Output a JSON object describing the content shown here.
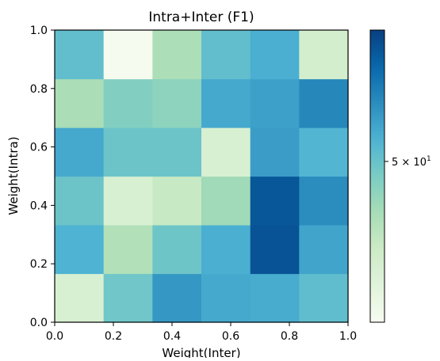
{
  "chart_data": {
    "type": "heatmap",
    "title": "Intra+Inter (F1)",
    "xlabel": "Weight(Inter)",
    "ylabel": "Weight(Intra)",
    "xlim": [
      0.0,
      1.0
    ],
    "ylim": [
      0.0,
      1.0
    ],
    "x_ticks": [
      "0.0",
      "0.2",
      "0.4",
      "0.6",
      "0.8",
      "1.0"
    ],
    "y_ticks": [
      "0.0",
      "0.2",
      "0.4",
      "0.6",
      "0.8",
      "1.0"
    ],
    "grid": false,
    "colormap": "GnBu",
    "colorbar": {
      "scale": "log",
      "vmin": 40,
      "vmax": 60,
      "tick_value": 50,
      "tick_label_base": "5 × 10",
      "tick_label_exp": "1"
    },
    "rows_y": [
      "0.0–0.17",
      "0.17–0.33",
      "0.33–0.5",
      "0.5–0.67",
      "0.67–0.83",
      "0.83–1.0"
    ],
    "cols_x": [
      "0.0–0.17",
      "0.17–0.33",
      "0.33–0.5",
      "0.5–0.67",
      "0.67–0.83",
      "0.83–1.0"
    ],
    "values": [
      [
        43.0,
        49.6,
        53.4,
        52.2,
        52.0,
        50.5
      ],
      [
        51.5,
        46.0,
        49.7,
        51.8,
        58.6,
        52.5
      ],
      [
        49.8,
        43.0,
        44.6,
        47.0,
        58.3,
        54.2
      ],
      [
        52.2,
        49.8,
        49.8,
        43.0,
        53.0,
        51.3
      ],
      [
        46.4,
        48.6,
        48.0,
        52.2,
        52.8,
        54.6
      ],
      [
        50.4,
        40.2,
        46.3,
        50.4,
        51.8,
        43.5
      ]
    ]
  }
}
